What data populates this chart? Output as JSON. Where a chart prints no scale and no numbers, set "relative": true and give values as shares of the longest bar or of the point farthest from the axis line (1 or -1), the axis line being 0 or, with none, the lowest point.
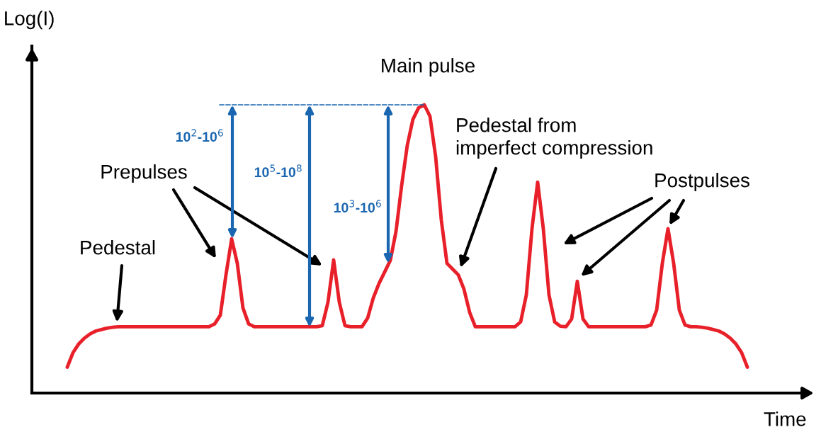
{
  "chart_data": {
    "type": "line",
    "relative": true,
    "xlabel": "Time",
    "ylabel": "Log(I)",
    "categories": [
      null,
      null,
      null,
      null,
      null,
      null,
      null,
      null,
      null,
      null,
      null,
      null,
      null,
      null,
      null,
      null,
      null,
      null,
      null,
      null,
      null,
      null,
      null,
      null,
      null,
      null,
      null,
      null,
      null,
      null,
      null,
      null,
      null,
      null,
      null,
      null,
      null,
      null,
      null,
      null,
      null,
      null,
      null,
      null,
      null,
      null,
      null,
      null,
      null,
      null,
      null,
      null,
      null,
      null,
      null,
      null,
      null,
      null,
      null,
      null,
      null,
      null,
      null,
      null,
      null,
      null,
      null,
      null,
      null,
      null,
      null,
      null,
      null,
      null,
      null,
      null,
      null,
      null,
      null,
      null,
      null,
      null,
      null,
      null,
      null,
      null,
      null,
      null,
      null,
      null,
      null,
      null,
      null,
      null,
      null,
      null,
      null,
      null,
      null,
      null,
      null,
      null,
      null,
      null,
      null,
      null,
      null,
      null,
      null,
      null,
      null,
      null,
      null,
      null,
      null,
      null,
      null,
      null,
      null,
      null,
      null
    ],
    "series": [
      {
        "color": "#e8202a",
        "values": [
          0.09,
          0.14,
          0.17,
          0.19,
          0.205,
          0.215,
          0.22,
          0.225,
          0.228,
          0.23,
          0.23,
          0.23,
          0.23,
          0.23,
          0.23,
          0.23,
          0.23,
          0.23,
          0.23,
          0.23,
          0.23,
          0.23,
          0.23,
          0.23,
          0.23,
          0.23,
          0.24,
          0.27,
          0.41,
          0.535,
          0.45,
          0.295,
          0.24,
          0.23,
          0.23,
          0.23,
          0.23,
          0.23,
          0.23,
          0.23,
          0.23,
          0.23,
          0.23,
          0.23,
          0.23,
          0.234,
          0.315,
          0.462,
          0.315,
          0.234,
          0.23,
          0.23,
          0.23,
          0.26,
          0.33,
          0.38,
          0.42,
          0.46,
          0.56,
          0.72,
          0.86,
          0.95,
          0.99,
          1.0,
          0.96,
          0.82,
          0.6,
          0.45,
          0.43,
          0.41,
          0.36,
          0.28,
          0.23,
          0.23,
          0.23,
          0.23,
          0.23,
          0.23,
          0.23,
          0.23,
          0.247,
          0.34,
          0.57,
          0.732,
          0.57,
          0.34,
          0.247,
          0.232,
          0.23,
          0.257,
          0.388,
          0.257,
          0.23,
          0.23,
          0.23,
          0.23,
          0.23,
          0.23,
          0.23,
          0.23,
          0.23,
          0.23,
          0.23,
          0.236,
          0.288,
          0.45,
          0.57,
          0.45,
          0.288,
          0.236,
          0.23,
          0.23,
          0.228,
          0.225,
          0.22,
          0.215,
          0.205,
          0.19,
          0.17,
          0.14,
          0.09
        ]
      }
    ],
    "annotations": [
      "Main pulse",
      "Pedestal from\nimperfect compression",
      "Prepulses",
      "Postpulses",
      "Pedestal",
      "10$^{2}$-10$^{6}$",
      "10$^{5}$-10$^{8}$",
      "10$^{3}$-10$^{6}$"
    ]
  }
}
